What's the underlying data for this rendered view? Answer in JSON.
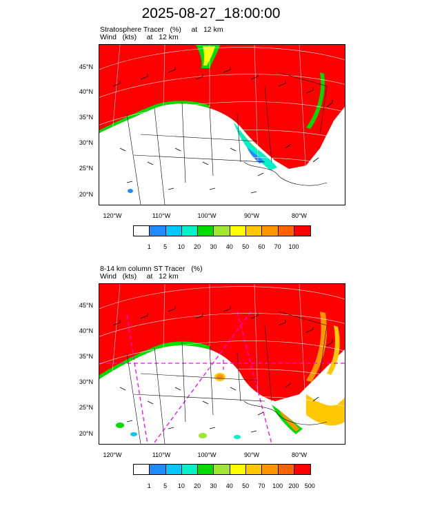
{
  "title": "2025-08-27_18:00:00",
  "panels": [
    {
      "title_line1": "Stratosphere Tracer   (%)     at   12 km",
      "title_line2": "Wind   (kts)     at   12 km",
      "lat_labels": [
        "45°N",
        "40°N",
        "35°N",
        "30°N",
        "25°N",
        "20°N"
      ],
      "lon_labels": [
        "120°W",
        "110°W",
        "100°W",
        "90°W",
        "80°W"
      ],
      "colorbar_labels": [
        "1",
        "5",
        "10",
        "20",
        "30",
        "40",
        "50",
        "60",
        "70",
        "100"
      ]
    },
    {
      "title_line1": "8-14 km column ST Tracer   (%)",
      "title_line2": "Wind   (kts)     at   12 km",
      "lat_labels": [
        "45°N",
        "40°N",
        "35°N",
        "30°N",
        "25°N",
        "20°N"
      ],
      "lon_labels": [
        "120°W",
        "110°W",
        "100°W",
        "90°W",
        "80°W"
      ],
      "colorbar_labels": [
        "1",
        "5",
        "10",
        "20",
        "30",
        "40",
        "50",
        "70",
        "100",
        "200",
        "500"
      ]
    }
  ],
  "colorbar_colors": [
    "#ffffff",
    "#1e8cff",
    "#00c8ff",
    "#00f0c8",
    "#00dc00",
    "#a0e632",
    "#ffff00",
    "#ffc800",
    "#ff9600",
    "#ff6400",
    "#ff0000"
  ]
}
